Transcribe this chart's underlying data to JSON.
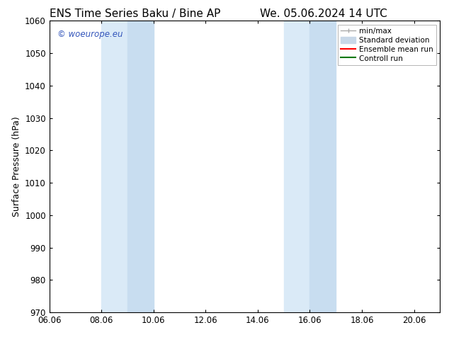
{
  "title_left": "ENS Time Series Baku / Bine AP",
  "title_right": "We. 05.06.2024 14 UTC",
  "ylabel": "Surface Pressure (hPa)",
  "xlabel": "",
  "xlim": [
    6.0,
    21.0
  ],
  "ylim": [
    970,
    1060
  ],
  "yticks": [
    970,
    980,
    990,
    1000,
    1010,
    1020,
    1030,
    1040,
    1050,
    1060
  ],
  "xticks": [
    6.0,
    8.0,
    10.0,
    12.0,
    14.0,
    16.0,
    18.0,
    20.0
  ],
  "xticklabels": [
    "06.06",
    "08.06",
    "10.06",
    "12.06",
    "14.06",
    "16.06",
    "18.06",
    "20.06"
  ],
  "shaded_bands": [
    {
      "x_start": 8.0,
      "x_end": 9.0,
      "color": "#daeaf7"
    },
    {
      "x_start": 9.0,
      "x_end": 10.0,
      "color": "#c8ddf0"
    },
    {
      "x_start": 15.0,
      "x_end": 16.0,
      "color": "#daeaf7"
    },
    {
      "x_start": 16.0,
      "x_end": 17.0,
      "color": "#c8ddf0"
    }
  ],
  "watermark_text": "© woeurope.eu",
  "watermark_color": "#3355bb",
  "bg_color": "#ffffff",
  "plot_bg_color": "#ffffff",
  "legend_items": [
    {
      "label": "min/max",
      "color": "#aaaaaa",
      "lw": 1.0,
      "linestyle": "-"
    },
    {
      "label": "Standard deviation",
      "color": "#c8d8e8",
      "lw": 8,
      "linestyle": "-"
    },
    {
      "label": "Ensemble mean run",
      "color": "#ff0000",
      "lw": 1.5,
      "linestyle": "-"
    },
    {
      "label": "Controll run",
      "color": "#007700",
      "lw": 1.5,
      "linestyle": "-"
    }
  ],
  "title_fontsize": 11,
  "axis_fontsize": 9,
  "tick_fontsize": 8.5,
  "legend_fontsize": 7.5,
  "watermark_fontsize": 8.5
}
